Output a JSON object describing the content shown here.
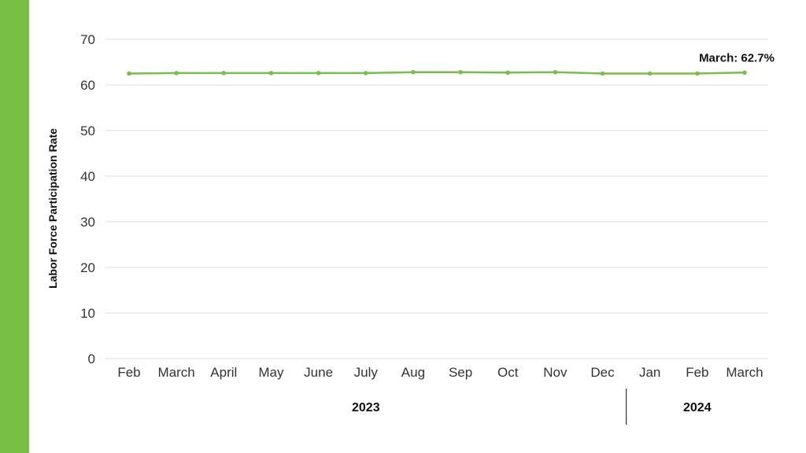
{
  "colors": {
    "accent_bar": "#78c043",
    "line": "#78c043",
    "grid": "#dddddd"
  },
  "chart_data": {
    "type": "line",
    "ylabel": "Labor Force Participation Rate",
    "ylim": [
      0,
      70
    ],
    "yticks": [
      0,
      10,
      20,
      30,
      40,
      50,
      60,
      70
    ],
    "grid": true,
    "categories": [
      "Feb",
      "March",
      "April",
      "May",
      "June",
      "July",
      "Aug",
      "Sep",
      "Oct",
      "Nov",
      "Dec",
      "Jan",
      "Feb",
      "March"
    ],
    "series": [
      {
        "values": [
          62.5,
          62.6,
          62.6,
          62.6,
          62.6,
          62.6,
          62.8,
          62.8,
          62.7,
          62.8,
          62.5,
          62.5,
          62.5,
          62.7
        ]
      }
    ],
    "year_groups": [
      {
        "label": "2023",
        "start": 0,
        "end": 10
      },
      {
        "label": "2024",
        "start": 11,
        "end": 13
      }
    ],
    "annotation": {
      "text": "March: 62.7%",
      "index": 13
    }
  }
}
